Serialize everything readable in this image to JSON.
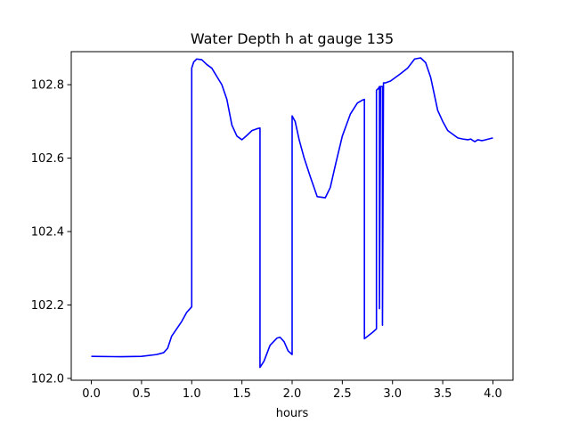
{
  "chart_data": {
    "type": "line",
    "title": "Water Depth h at gauge 135",
    "xlabel": "hours",
    "ylabel": "",
    "xlim": [
      -0.2,
      4.2
    ],
    "ylim": [
      101.995,
      102.89
    ],
    "xticks": [
      0.0,
      0.5,
      1.0,
      1.5,
      2.0,
      2.5,
      3.0,
      3.5,
      4.0
    ],
    "xtick_labels": [
      "0.0",
      "0.5",
      "1.0",
      "1.5",
      "2.0",
      "2.5",
      "3.0",
      "3.5",
      "4.0"
    ],
    "yticks": [
      102.0,
      102.2,
      102.4,
      102.6,
      102.8
    ],
    "ytick_labels": [
      "102.0",
      "102.2",
      "102.4",
      "102.6",
      "102.8"
    ],
    "grid": false,
    "series": [
      {
        "color": "#0000ff",
        "x": [
          0.0,
          0.3,
          0.5,
          0.65,
          0.72,
          0.76,
          0.8,
          0.85,
          0.9,
          0.95,
          1.0,
          1.0,
          1.02,
          1.05,
          1.1,
          1.15,
          1.2,
          1.3,
          1.35,
          1.4,
          1.45,
          1.5,
          1.55,
          1.6,
          1.65,
          1.68,
          1.68,
          1.72,
          1.78,
          1.85,
          1.88,
          1.92,
          1.96,
          2.0,
          2.0,
          2.03,
          2.07,
          2.12,
          2.18,
          2.25,
          2.33,
          2.38,
          2.43,
          2.5,
          2.58,
          2.65,
          2.7,
          2.72,
          2.72,
          2.8,
          2.84,
          2.84,
          2.86,
          2.87,
          2.87,
          2.88,
          2.89,
          2.9,
          2.9,
          2.91,
          2.93,
          2.98,
          3.03,
          3.08,
          3.15,
          3.22,
          3.28,
          3.33,
          3.38,
          3.45,
          3.5,
          3.55,
          3.6,
          3.65,
          3.7,
          3.75,
          3.78,
          3.8,
          3.82,
          3.85,
          3.88,
          3.9,
          4.0
        ],
        "y": [
          102.06,
          102.059,
          102.06,
          102.065,
          102.07,
          102.082,
          102.115,
          102.135,
          102.155,
          102.18,
          102.195,
          102.845,
          102.862,
          102.87,
          102.868,
          102.855,
          102.845,
          102.8,
          102.76,
          102.69,
          102.66,
          102.65,
          102.662,
          102.675,
          102.68,
          102.682,
          102.03,
          102.047,
          102.09,
          102.11,
          102.112,
          102.1,
          102.075,
          102.065,
          102.715,
          102.7,
          102.65,
          102.6,
          102.55,
          102.495,
          102.492,
          102.52,
          102.58,
          102.66,
          102.72,
          102.75,
          102.758,
          102.76,
          102.108,
          102.125,
          102.135,
          102.785,
          102.79,
          102.795,
          102.19,
          102.795,
          102.795,
          102.795,
          102.145,
          102.805,
          102.805,
          102.81,
          102.82,
          102.83,
          102.845,
          102.87,
          102.873,
          102.86,
          102.82,
          102.73,
          102.7,
          102.675,
          102.665,
          102.655,
          102.652,
          102.65,
          102.652,
          102.648,
          102.645,
          102.65,
          102.648,
          102.648,
          102.655
        ]
      }
    ]
  }
}
